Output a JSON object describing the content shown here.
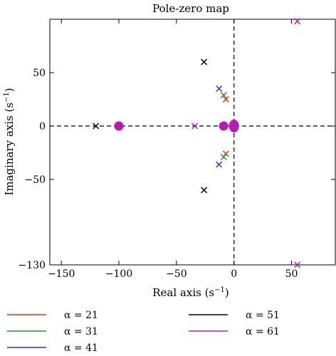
{
  "chart_data": {
    "type": "scatter",
    "title": "Pole-zero map",
    "xlabel_main": "Real axis (s",
    "xlabel_exp": "−1",
    "xlabel_end": ")",
    "ylabel_main": "Imaginary axis (s",
    "ylabel_exp": "−1",
    "ylabel_end": ")",
    "xlim": [
      -160,
      88
    ],
    "ylim": [
      -130,
      100
    ],
    "xticks": [
      {
        "value": -150,
        "label": "−150"
      },
      {
        "value": -100,
        "label": "−100"
      },
      {
        "value": -50,
        "label": "−50"
      },
      {
        "value": 0,
        "label": "0"
      },
      {
        "value": 50,
        "label": "50"
      }
    ],
    "yticks": [
      {
        "value": 50,
        "label": "50"
      },
      {
        "value": 0,
        "label": "0"
      },
      {
        "value": -50,
        "label": "−50"
      },
      {
        "value": -130,
        "label": "−130"
      }
    ],
    "grid": false,
    "reference_lines": [
      "x=0 dashed",
      "y=0 dashed"
    ],
    "legend_placement": "below",
    "series": [
      {
        "name": "α = 21",
        "color": "#e8291c",
        "poles": [
          [
            -7,
            25
          ],
          [
            -7,
            -26
          ]
        ],
        "zeros": []
      },
      {
        "name": "α = 31",
        "color": "#1f9e2a",
        "poles": [
          [
            -9,
            29
          ],
          [
            -9,
            -29
          ]
        ],
        "zeros": []
      },
      {
        "name": "α = 41",
        "color": "#2a35c8",
        "poles": [
          [
            -13,
            35
          ],
          [
            -13,
            -36
          ]
        ],
        "zeros": []
      },
      {
        "name": "α = 51",
        "color": "#000000",
        "poles": [
          [
            -120,
            0
          ],
          [
            -26,
            60
          ],
          [
            -26,
            -60
          ]
        ],
        "zeros": []
      },
      {
        "name": "α = 61",
        "color": "#b81ab8",
        "poles": [
          [
            -34,
            0
          ],
          [
            55,
            98
          ],
          [
            55,
            -130
          ]
        ],
        "zeros": [
          [
            -100,
            0
          ],
          [
            -9,
            0
          ],
          [
            0,
            0
          ]
        ]
      }
    ]
  },
  "legend": {
    "items": [
      {
        "label": "α = 21",
        "color": "#e8291c"
      },
      {
        "label": "α = 51",
        "color": "#000000"
      },
      {
        "label": "α = 31",
        "color": "#1f9e2a"
      },
      {
        "label": "α = 61",
        "color": "#b81ab8"
      },
      {
        "label": "α = 41",
        "color": "#2a35c8"
      }
    ]
  }
}
